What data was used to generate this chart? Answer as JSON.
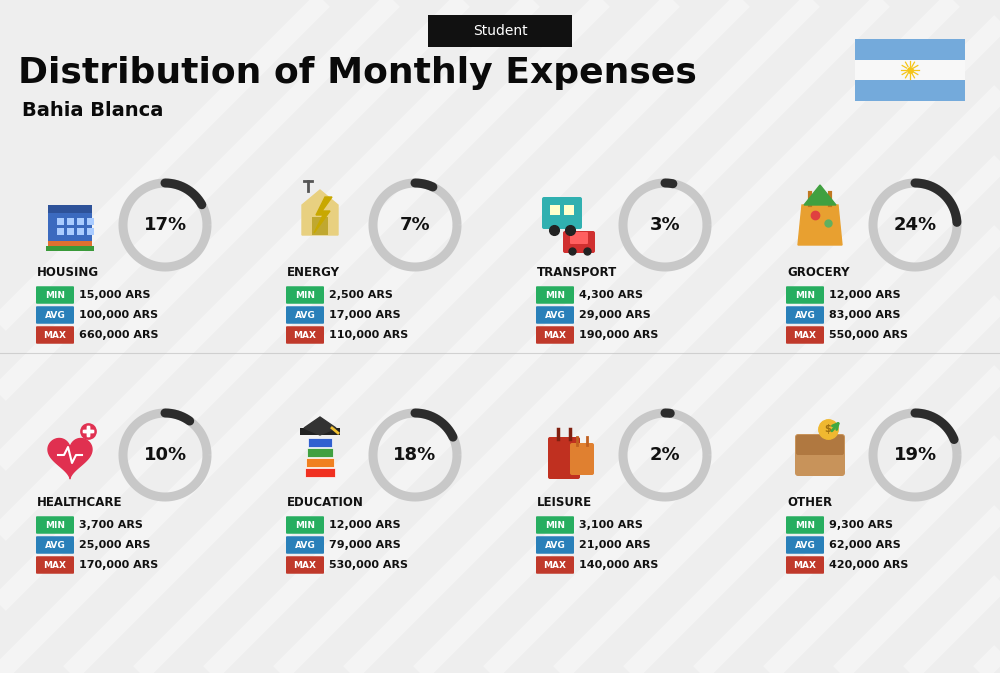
{
  "title": "Distribution of Monthly Expenses",
  "subtitle": "Student",
  "location": "Bahia Blanca",
  "bg_color": "#eeeeee",
  "categories": [
    {
      "name": "HOUSING",
      "pct": 17,
      "min_val": "15,000 ARS",
      "avg_val": "100,000 ARS",
      "max_val": "660,000 ARS",
      "row": 0,
      "col": 0
    },
    {
      "name": "ENERGY",
      "pct": 7,
      "min_val": "2,500 ARS",
      "avg_val": "17,000 ARS",
      "max_val": "110,000 ARS",
      "row": 0,
      "col": 1
    },
    {
      "name": "TRANSPORT",
      "pct": 3,
      "min_val": "4,300 ARS",
      "avg_val": "29,000 ARS",
      "max_val": "190,000 ARS",
      "row": 0,
      "col": 2
    },
    {
      "name": "GROCERY",
      "pct": 24,
      "min_val": "12,000 ARS",
      "avg_val": "83,000 ARS",
      "max_val": "550,000 ARS",
      "row": 0,
      "col": 3
    },
    {
      "name": "HEALTHCARE",
      "pct": 10,
      "min_val": "3,700 ARS",
      "avg_val": "25,000 ARS",
      "max_val": "170,000 ARS",
      "row": 1,
      "col": 0
    },
    {
      "name": "EDUCATION",
      "pct": 18,
      "min_val": "12,000 ARS",
      "avg_val": "79,000 ARS",
      "max_val": "530,000 ARS",
      "row": 1,
      "col": 1
    },
    {
      "name": "LEISURE",
      "pct": 2,
      "min_val": "3,100 ARS",
      "avg_val": "21,000 ARS",
      "max_val": "140,000 ARS",
      "row": 1,
      "col": 2
    },
    {
      "name": "OTHER",
      "pct": 19,
      "min_val": "9,300 ARS",
      "avg_val": "62,000 ARS",
      "max_val": "420,000 ARS",
      "row": 1,
      "col": 3
    }
  ],
  "min_color": "#27ae60",
  "avg_color": "#2980b9",
  "max_color": "#c0392b",
  "arc_dark": "#2c2c2c",
  "arc_light": "#c8c8c8",
  "flag_blue": "#74aadb",
  "stripe_color": "#ffffff"
}
